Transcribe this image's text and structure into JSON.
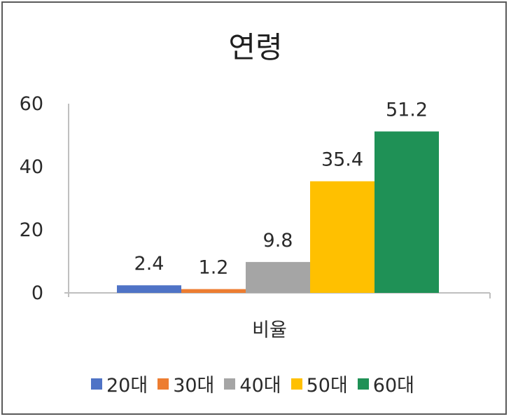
{
  "chart_data": {
    "type": "bar",
    "title": "연령",
    "xlabel": "",
    "ylabel": "",
    "categories": [
      "비율"
    ],
    "series": [
      {
        "name": "20대",
        "values": [
          2.4
        ],
        "color": "#4f73c6"
      },
      {
        "name": "30대",
        "values": [
          1.2
        ],
        "color": "#ed7d31"
      },
      {
        "name": "40대",
        "values": [
          9.8
        ],
        "color": "#a5a5a5"
      },
      {
        "name": "50대",
        "values": [
          35.4
        ],
        "color": "#ffc000"
      },
      {
        "name": "60대",
        "values": [
          51.2
        ],
        "color": "#1f9156"
      }
    ],
    "ylim": [
      0,
      60
    ],
    "yticks": [
      "0",
      "20",
      "40",
      "60"
    ],
    "value_labels": [
      "2.4",
      "1.2",
      "9.8",
      "35.4",
      "51.2"
    ],
    "grid": false,
    "legend_position": "bottom"
  }
}
